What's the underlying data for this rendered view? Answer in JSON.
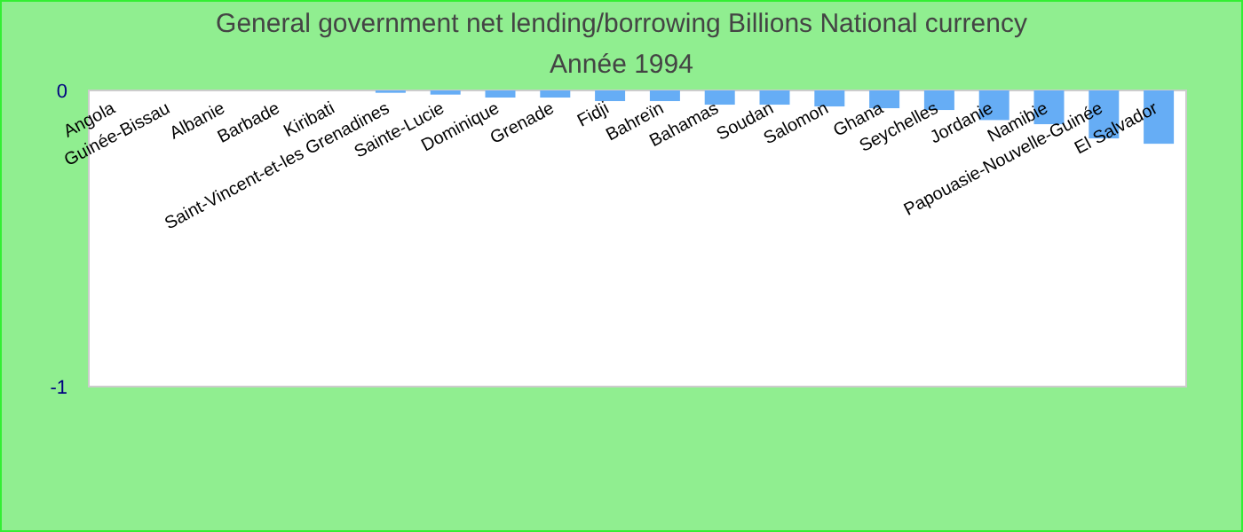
{
  "chart_data": {
    "type": "bar",
    "title": "General government net lending/borrowing Billions National currency",
    "subtitle": "Année 1994",
    "categories": [
      "Angola",
      "Guinée-Bissau",
      "Albanie",
      "Barbade",
      "Kiribati",
      "Saint-Vincent-et-les Grenadines",
      "Sainte-Lucie",
      "Dominique",
      "Grenade",
      "Fidji",
      "Bahreïn",
      "Bahamas",
      "Soudan",
      "Salomon",
      "Ghana",
      "Seychelles",
      "Jordanie",
      "Namibie",
      "Papouasie-Nouvelle-Guinée",
      "El Salvador"
    ],
    "values": [
      0,
      0,
      0,
      0,
      0,
      -0.008,
      -0.014,
      -0.024,
      -0.024,
      -0.036,
      -0.036,
      -0.048,
      -0.048,
      -0.054,
      -0.06,
      -0.066,
      -0.1,
      -0.114,
      -0.162,
      -0.18
    ],
    "color": "#66adf5",
    "ylim": [
      -1,
      0
    ],
    "yticks": [
      -1,
      0
    ],
    "grid": false
  }
}
